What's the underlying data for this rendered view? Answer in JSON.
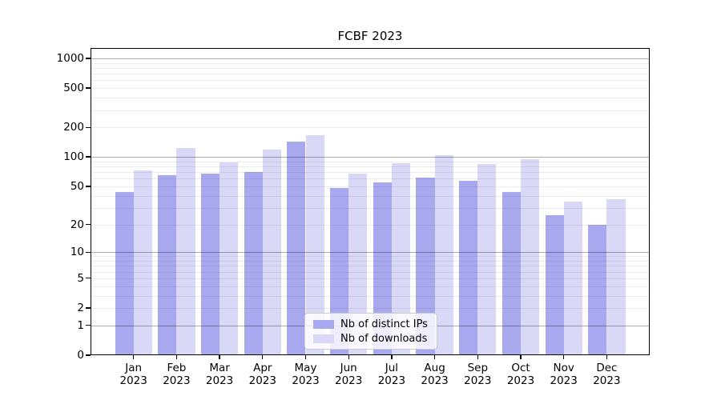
{
  "title": "FCBF 2023",
  "chart_data": {
    "type": "bar",
    "title": "FCBF 2023",
    "y_scale": "log1p",
    "ylim": [
      0,
      1220
    ],
    "grid": "horizontal; faint minor lines at 2-9 per decade, darker major lines at 1, 10, 100, 1000",
    "legend_position": "inside plot, lower center",
    "categories": [
      "Jan 2023",
      "Feb 2023",
      "Mar 2023",
      "Apr 2023",
      "May 2023",
      "Jun 2023",
      "Jul 2023",
      "Aug 2023",
      "Sep 2023",
      "Oct 2023",
      "Nov 2023",
      "Dec 2023"
    ],
    "series": [
      {
        "name": "Nb of distinct IPs",
        "color": "#a8a8ef",
        "values": [
          44,
          65,
          67,
          70,
          142,
          48,
          55,
          61,
          57,
          44,
          25,
          20
        ]
      },
      {
        "name": "Nb of downloads",
        "color": "#d9d9f7",
        "values": [
          73,
          124,
          88,
          119,
          167,
          67,
          86,
          105,
          85,
          95,
          35,
          37
        ]
      }
    ],
    "y_ticks": [
      0,
      1,
      2,
      5,
      10,
      20,
      50,
      100,
      200,
      500,
      1000
    ],
    "major_gridlines": [
      1,
      10,
      100,
      1000
    ],
    "minor_gridlines": [
      2,
      3,
      4,
      5,
      6,
      7,
      8,
      9,
      20,
      30,
      40,
      50,
      60,
      70,
      80,
      90,
      200,
      300,
      400,
      500,
      600,
      700,
      800,
      900
    ]
  }
}
